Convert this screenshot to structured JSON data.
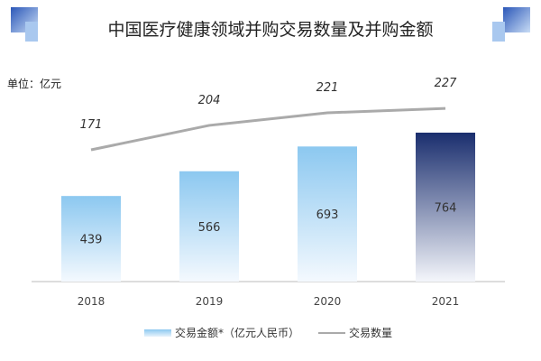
{
  "title": "中国医疗健康领域并购交易数量及并购金额",
  "unit": "单位：亿元",
  "chart_data": {
    "type": "bar+line",
    "title": "中国医疗健康领域并购交易数量及并购金额",
    "categories": [
      "2018",
      "2019",
      "2020",
      "2021"
    ],
    "series": [
      {
        "name": "交易金额*（亿元人民币）",
        "type": "bar",
        "values": [
          439,
          566,
          693,
          764
        ]
      },
      {
        "name": "交易数量",
        "type": "line",
        "values": [
          171,
          204,
          221,
          227
        ]
      }
    ],
    "colors": {
      "bar": "#8cc8f0",
      "bar_highlight": "#1a2e6e",
      "line": "#aaaaaa"
    },
    "grid": false,
    "legend": "bottom"
  }
}
